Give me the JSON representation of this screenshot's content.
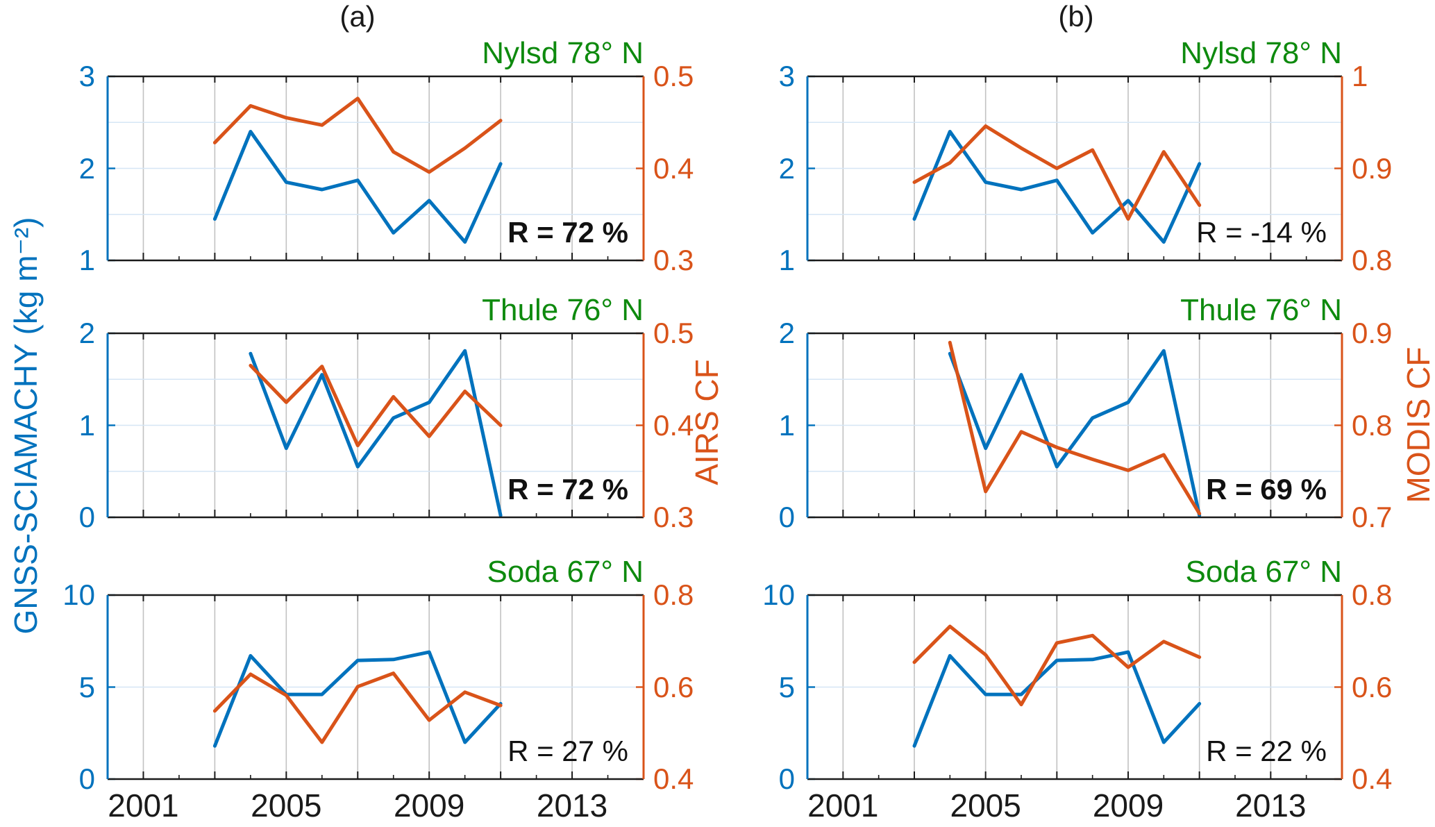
{
  "figure": {
    "panel_a_label": "(a)",
    "panel_b_label": "(b)",
    "left_axis_label": "GNSS-SCIAMACHY (kg m⁻²)",
    "right_axis_label_a": "AIRS CF",
    "right_axis_label_b": "MODIS CF"
  },
  "colors": {
    "blue": "#0072BD",
    "orange": "#D95319",
    "green": "#0e8a0e",
    "black": "#1a1a1a",
    "grid_vertical": "#c2c2c2",
    "grid_horizontal": "#d6e6f5"
  },
  "chart_data": [
    {
      "panel": "a",
      "row": 0,
      "type": "line",
      "station": "Nylsd 78° N",
      "r_label": "R = 72 %",
      "r_bold": true,
      "x_range": [
        2000,
        2015
      ],
      "x_gridline_years": [
        2001,
        2003,
        2005,
        2007,
        2009,
        2011,
        2013
      ],
      "x_tick_years": [],
      "x_tick_labels": [],
      "left_axis": {
        "range": [
          1,
          3
        ],
        "tick_values": [
          1,
          2,
          3
        ],
        "tick_labels": [
          "1",
          "2",
          "3"
        ],
        "gridline_values": [
          1.5,
          2,
          2.5
        ]
      },
      "right_axis": {
        "range": [
          0.3,
          0.5
        ],
        "tick_values": [
          0.3,
          0.4,
          0.5
        ],
        "tick_labels": [
          "0.3",
          "0.4",
          "0.5"
        ]
      },
      "series": [
        {
          "name": "GNSS-SCIAMACHY",
          "axis": "left",
          "color": "blue",
          "x": [
            2003,
            2004,
            2005,
            2006,
            2007,
            2008,
            2009,
            2010,
            2011
          ],
          "y": [
            1.45,
            2.4,
            1.85,
            1.77,
            1.87,
            1.3,
            1.65,
            1.2,
            2.05
          ]
        },
        {
          "name": "AIRS CF",
          "axis": "right",
          "color": "orange",
          "x": [
            2003,
            2004,
            2005,
            2006,
            2007,
            2008,
            2009,
            2010,
            2011
          ],
          "y": [
            0.428,
            0.468,
            0.455,
            0.447,
            0.476,
            0.418,
            0.396,
            0.422,
            0.452
          ]
        }
      ]
    },
    {
      "panel": "b",
      "row": 0,
      "type": "line",
      "station": "Nylsd 78° N",
      "r_label": "R = -14 %",
      "r_bold": false,
      "x_range": [
        2000,
        2015
      ],
      "x_gridline_years": [
        2001,
        2003,
        2005,
        2007,
        2009,
        2011,
        2013
      ],
      "x_tick_years": [],
      "x_tick_labels": [],
      "left_axis": {
        "range": [
          1,
          3
        ],
        "tick_values": [
          1,
          2,
          3
        ],
        "tick_labels": [
          "1",
          "2",
          "3"
        ],
        "gridline_values": [
          1.5,
          2,
          2.5
        ]
      },
      "right_axis": {
        "range": [
          0.8,
          1.0
        ],
        "tick_values": [
          0.8,
          0.9,
          1.0
        ],
        "tick_labels": [
          "0.8",
          "0.9",
          "1"
        ]
      },
      "series": [
        {
          "name": "GNSS-SCIAMACHY",
          "axis": "left",
          "color": "blue",
          "x": [
            2003,
            2004,
            2005,
            2006,
            2007,
            2008,
            2009,
            2010,
            2011
          ],
          "y": [
            1.45,
            2.4,
            1.85,
            1.77,
            1.87,
            1.3,
            1.65,
            1.2,
            2.05
          ]
        },
        {
          "name": "MODIS CF",
          "axis": "right",
          "color": "orange",
          "x": [
            2003,
            2004,
            2005,
            2006,
            2007,
            2008,
            2009,
            2010,
            2011
          ],
          "y": [
            0.885,
            0.906,
            0.946,
            0.922,
            0.9,
            0.92,
            0.845,
            0.918,
            0.86
          ]
        }
      ]
    },
    {
      "panel": "a",
      "row": 1,
      "type": "line",
      "station": "Thule 76° N",
      "r_label": "R = 72 %",
      "r_bold": true,
      "x_range": [
        2000,
        2015
      ],
      "x_gridline_years": [
        2001,
        2003,
        2005,
        2007,
        2009,
        2011,
        2013
      ],
      "x_tick_years": [],
      "x_tick_labels": [],
      "left_axis": {
        "range": [
          0,
          2
        ],
        "tick_values": [
          0,
          1,
          2
        ],
        "tick_labels": [
          "0",
          "1",
          "2"
        ],
        "gridline_values": [
          0.5,
          1,
          1.5
        ]
      },
      "right_axis": {
        "range": [
          0.3,
          0.5
        ],
        "tick_values": [
          0.3,
          0.4,
          0.5
        ],
        "tick_labels": [
          "0.3",
          "0.4",
          "0.5"
        ]
      },
      "series": [
        {
          "name": "GNSS-SCIAMACHY",
          "axis": "left",
          "color": "blue",
          "x": [
            2004,
            2005,
            2006,
            2007,
            2008,
            2009,
            2010,
            2011
          ],
          "y": [
            1.78,
            0.75,
            1.55,
            0.55,
            1.08,
            1.25,
            1.81,
            0.02
          ]
        },
        {
          "name": "AIRS CF",
          "axis": "right",
          "color": "orange",
          "x": [
            2004,
            2005,
            2006,
            2007,
            2008,
            2009,
            2010,
            2011
          ],
          "y": [
            0.465,
            0.425,
            0.464,
            0.378,
            0.431,
            0.388,
            0.437,
            0.4
          ]
        }
      ]
    },
    {
      "panel": "b",
      "row": 1,
      "type": "line",
      "station": "Thule 76° N",
      "r_label": "R = 69 %",
      "r_bold": true,
      "x_range": [
        2000,
        2015
      ],
      "x_gridline_years": [
        2001,
        2003,
        2005,
        2007,
        2009,
        2011,
        2013
      ],
      "x_tick_years": [],
      "x_tick_labels": [],
      "left_axis": {
        "range": [
          0,
          2
        ],
        "tick_values": [
          0,
          1,
          2
        ],
        "tick_labels": [
          "0",
          "1",
          "2"
        ],
        "gridline_values": [
          0.5,
          1,
          1.5
        ]
      },
      "right_axis": {
        "range": [
          0.7,
          0.9
        ],
        "tick_values": [
          0.7,
          0.8,
          0.9
        ],
        "tick_labels": [
          "0.7",
          "0.8",
          "0.9"
        ]
      },
      "series": [
        {
          "name": "GNSS-SCIAMACHY",
          "axis": "left",
          "color": "blue",
          "x": [
            2004,
            2005,
            2006,
            2007,
            2008,
            2009,
            2010,
            2011
          ],
          "y": [
            1.78,
            0.75,
            1.55,
            0.55,
            1.08,
            1.25,
            1.81,
            0.02
          ]
        },
        {
          "name": "MODIS CF",
          "axis": "right",
          "color": "orange",
          "x": [
            2004,
            2005,
            2006,
            2007,
            2008,
            2009,
            2010,
            2011
          ],
          "y": [
            0.89,
            0.728,
            0.793,
            0.776,
            0.763,
            0.751,
            0.768,
            0.704
          ]
        }
      ]
    },
    {
      "panel": "a",
      "row": 2,
      "type": "line",
      "station": "Soda 67° N",
      "r_label": "R = 27 %",
      "r_bold": false,
      "x_range": [
        2000,
        2015
      ],
      "x_gridline_years": [
        2001,
        2003,
        2005,
        2007,
        2009,
        2011,
        2013
      ],
      "x_tick_years": [
        2001,
        2005,
        2009,
        2013
      ],
      "x_tick_labels": [
        "2001",
        "2005",
        "2009",
        "2013"
      ],
      "left_axis": {
        "range": [
          0,
          10
        ],
        "tick_values": [
          0,
          5,
          10
        ],
        "tick_labels": [
          "0",
          "5",
          "10"
        ],
        "gridline_values": [
          5
        ]
      },
      "right_axis": {
        "range": [
          0.4,
          0.8
        ],
        "tick_values": [
          0.4,
          0.6,
          0.8
        ],
        "tick_labels": [
          "0.4",
          "0.6",
          "0.8"
        ]
      },
      "series": [
        {
          "name": "GNSS-SCIAMACHY",
          "axis": "left",
          "color": "blue",
          "x": [
            2003,
            2004,
            2005,
            2006,
            2007,
            2008,
            2009,
            2010,
            2011
          ],
          "y": [
            1.8,
            6.7,
            4.6,
            4.6,
            6.45,
            6.5,
            6.9,
            2.0,
            4.1
          ]
        },
        {
          "name": "AIRS CF",
          "axis": "right",
          "color": "orange",
          "x": [
            2003,
            2004,
            2005,
            2006,
            2007,
            2008,
            2009,
            2010,
            2011
          ],
          "y": [
            0.548,
            0.628,
            0.582,
            0.48,
            0.601,
            0.63,
            0.528,
            0.589,
            0.56
          ]
        }
      ]
    },
    {
      "panel": "b",
      "row": 2,
      "type": "line",
      "station": "Soda 67° N",
      "r_label": "R = 22 %",
      "r_bold": false,
      "x_range": [
        2000,
        2015
      ],
      "x_gridline_years": [
        2001,
        2003,
        2005,
        2007,
        2009,
        2011,
        2013
      ],
      "x_tick_years": [
        2001,
        2005,
        2009,
        2013
      ],
      "x_tick_labels": [
        "2001",
        "2005",
        "2009",
        "2013"
      ],
      "left_axis": {
        "range": [
          0,
          10
        ],
        "tick_values": [
          0,
          5,
          10
        ],
        "tick_labels": [
          "0",
          "5",
          "10"
        ],
        "gridline_values": [
          5
        ]
      },
      "right_axis": {
        "range": [
          0.4,
          0.8
        ],
        "tick_values": [
          0.4,
          0.6,
          0.8
        ],
        "tick_labels": [
          "0.4",
          "0.6",
          "0.8"
        ]
      },
      "series": [
        {
          "name": "GNSS-SCIAMACHY",
          "axis": "left",
          "color": "blue",
          "x": [
            2003,
            2004,
            2005,
            2006,
            2007,
            2008,
            2009,
            2010,
            2011
          ],
          "y": [
            1.8,
            6.7,
            4.6,
            4.6,
            6.45,
            6.5,
            6.9,
            2.0,
            4.1
          ]
        },
        {
          "name": "MODIS CF",
          "axis": "right",
          "color": "orange",
          "x": [
            2003,
            2004,
            2005,
            2006,
            2007,
            2008,
            2009,
            2010,
            2011
          ],
          "y": [
            0.654,
            0.732,
            0.67,
            0.562,
            0.696,
            0.712,
            0.643,
            0.699,
            0.665
          ]
        }
      ]
    }
  ]
}
